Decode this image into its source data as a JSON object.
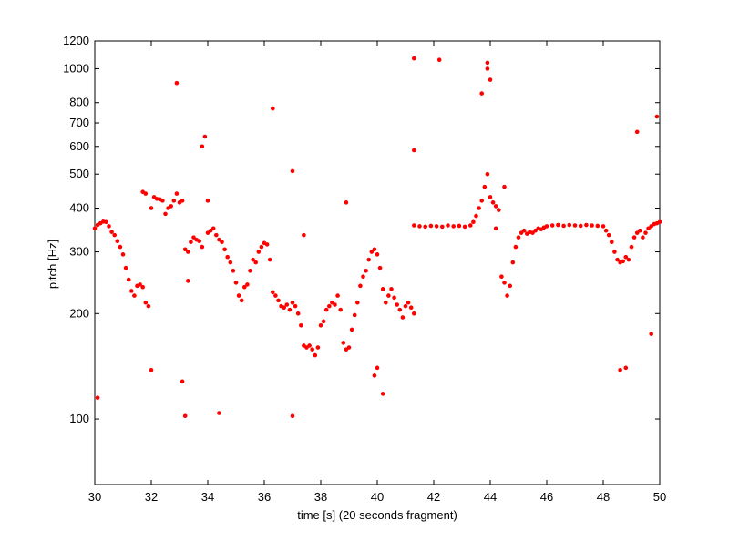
{
  "chart_data": {
    "type": "scatter",
    "x_label": "time [s] (20 seconds fragment)",
    "y_label": "pitch [Hz]",
    "log_y": true,
    "xlim": [
      30,
      50
    ],
    "ylim": [
      65,
      1200
    ],
    "xticks": [
      30,
      32,
      34,
      36,
      38,
      40,
      42,
      44,
      46,
      48,
      50
    ],
    "yticks": [
      100,
      200,
      300,
      400,
      500,
      600,
      700,
      800,
      1000,
      1200
    ],
    "color": "#ff0000",
    "x": [
      30.0,
      30.1,
      30.2,
      30.3,
      30.4,
      30.5,
      30.6,
      30.7,
      30.8,
      30.9,
      31.0,
      31.1,
      31.2,
      31.3,
      31.4,
      31.5,
      31.6,
      31.7,
      31.8,
      31.9,
      31.7,
      31.8,
      32.0,
      32.1,
      32.2,
      32.3,
      32.4,
      32.5,
      32.6,
      32.7,
      32.8,
      32.9,
      33.0,
      33.1,
      33.2,
      33.3,
      33.4,
      33.5,
      33.6,
      33.7,
      33.8,
      34.0,
      34.1,
      34.2,
      34.3,
      34.4,
      34.5,
      34.6,
      34.7,
      34.8,
      34.9,
      35.0,
      35.1,
      35.2,
      35.3,
      35.4,
      35.5,
      35.6,
      35.7,
      35.8,
      35.9,
      36.0,
      36.1,
      36.2,
      36.3,
      36.4,
      36.5,
      36.6,
      36.7,
      36.8,
      36.9,
      37.0,
      37.1,
      37.2,
      37.3,
      37.4,
      37.5,
      37.6,
      37.7,
      37.8,
      37.9,
      38.0,
      38.1,
      38.2,
      38.3,
      38.4,
      38.5,
      38.6,
      38.7,
      38.8,
      38.9,
      39.0,
      39.1,
      39.2,
      39.3,
      39.4,
      39.5,
      39.6,
      39.7,
      39.8,
      39.9,
      40.0,
      40.1,
      40.2,
      40.3,
      40.4,
      40.5,
      40.6,
      40.7,
      40.8,
      40.9,
      41.0,
      41.1,
      41.2,
      41.3,
      41.3,
      41.5,
      41.7,
      41.9,
      42.1,
      42.3,
      42.5,
      42.7,
      42.9,
      43.1,
      43.3,
      43.4,
      43.5,
      43.6,
      43.7,
      43.8,
      43.9,
      44.0,
      44.1,
      44.2,
      44.3,
      44.5,
      44.4,
      44.5,
      44.6,
      44.7,
      44.8,
      44.9,
      45.0,
      45.1,
      45.2,
      45.3,
      45.4,
      45.5,
      45.6,
      45.7,
      45.8,
      45.9,
      46.0,
      46.2,
      46.4,
      46.6,
      46.8,
      47.0,
      47.2,
      47.4,
      47.6,
      47.8,
      48.0,
      48.1,
      48.2,
      48.3,
      48.4,
      48.5,
      48.6,
      48.7,
      48.8,
      48.9,
      49.0,
      49.1,
      49.2,
      49.3,
      49.4,
      49.5,
      49.6,
      49.7,
      49.8,
      49.9,
      50.0,
      30.1,
      32.0,
      32.9,
      33.1,
      33.2,
      33.3,
      33.8,
      33.9,
      34.0,
      34.4,
      36.3,
      37.0,
      37.0,
      37.4,
      38.9,
      39.9,
      40.0,
      40.2,
      41.3,
      41.3,
      42.2,
      43.7,
      43.9,
      43.9,
      44.0,
      44.2,
      48.6,
      48.8,
      49.2,
      49.7,
      49.9
    ],
    "y": [
      350,
      358,
      362,
      366,
      365,
      355,
      342,
      335,
      322,
      310,
      295,
      270,
      250,
      232,
      225,
      240,
      242,
      238,
      215,
      210,
      445,
      440,
      400,
      430,
      425,
      424,
      420,
      385,
      400,
      405,
      420,
      440,
      415,
      420,
      305,
      300,
      320,
      330,
      325,
      322,
      310,
      340,
      345,
      350,
      335,
      325,
      320,
      305,
      290,
      280,
      265,
      245,
      225,
      218,
      238,
      242,
      265,
      285,
      280,
      300,
      310,
      318,
      315,
      285,
      230,
      225,
      218,
      210,
      208,
      212,
      205,
      215,
      210,
      200,
      185,
      162,
      160,
      162,
      158,
      152,
      160,
      185,
      190,
      205,
      210,
      215,
      212,
      225,
      205,
      165,
      158,
      160,
      180,
      198,
      215,
      240,
      255,
      265,
      285,
      300,
      305,
      295,
      270,
      235,
      215,
      225,
      235,
      222,
      212,
      205,
      195,
      210,
      215,
      208,
      200,
      357,
      355,
      354,
      356,
      355,
      354,
      357,
      355,
      356,
      354,
      357,
      365,
      380,
      400,
      420,
      460,
      500,
      430,
      415,
      405,
      395,
      460,
      255,
      245,
      225,
      240,
      280,
      310,
      330,
      340,
      345,
      338,
      342,
      340,
      345,
      350,
      348,
      352,
      355,
      357,
      358,
      356,
      358,
      357,
      356,
      358,
      357,
      356,
      355,
      345,
      335,
      320,
      300,
      285,
      280,
      282,
      290,
      285,
      310,
      330,
      340,
      345,
      330,
      340,
      350,
      355,
      360,
      362,
      365,
      115,
      138,
      910,
      128,
      102,
      248,
      600,
      640,
      420,
      104,
      770,
      102,
      510,
      335,
      415,
      133,
      140,
      118,
      1070,
      585,
      1060,
      850,
      1040,
      1000,
      930,
      350,
      138,
      140,
      660,
      175,
      730
    ]
  }
}
